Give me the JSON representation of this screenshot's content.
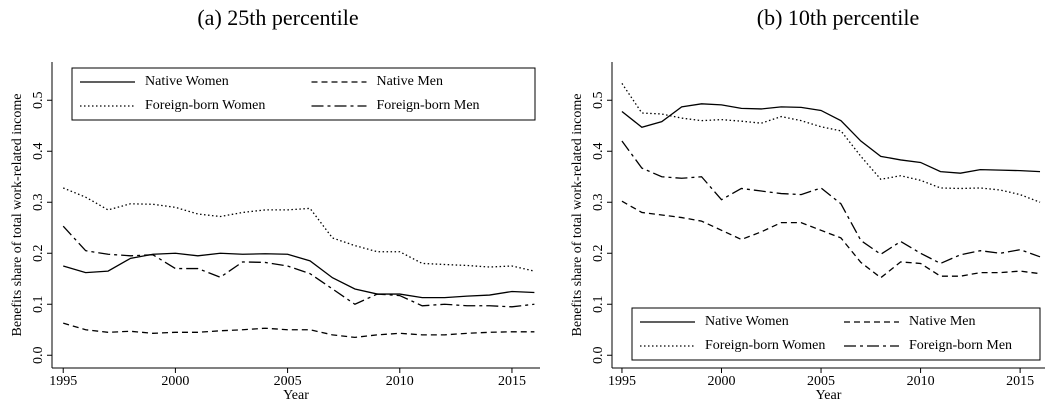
{
  "chart_data": [
    {
      "type": "line",
      "title": "(a) 25th percentile",
      "xlabel": "Year",
      "ylabel": "Benefits share of total work-related income",
      "x": [
        1995,
        1996,
        1997,
        1998,
        1999,
        2000,
        2001,
        2002,
        2003,
        2004,
        2005,
        2006,
        2007,
        2008,
        2009,
        2010,
        2011,
        2012,
        2013,
        2014,
        2015,
        2016
      ],
      "xlim": [
        1994.5,
        2016.25
      ],
      "xticks": [
        1995,
        2000,
        2005,
        2010,
        2015
      ],
      "ylim": [
        -0.025,
        0.575
      ],
      "yticks": [
        {
          "value": 0,
          "label": "0.0"
        },
        0.1,
        0.2,
        0.3,
        0.4,
        0.5
      ],
      "legend": "top",
      "series": [
        {
          "name": "Native Women",
          "color": "#000000",
          "style": "solid",
          "values": [
            0.175,
            0.162,
            0.165,
            0.19,
            0.198,
            0.2,
            0.195,
            0.2,
            0.198,
            0.199,
            0.198,
            0.185,
            0.152,
            0.13,
            0.12,
            0.12,
            0.113,
            0.113,
            0.116,
            0.118,
            0.125,
            0.123
          ]
        },
        {
          "name": "Native Men",
          "color": "#000000",
          "style": "dashed",
          "values": [
            0.063,
            0.05,
            0.045,
            0.047,
            0.043,
            0.045,
            0.045,
            0.048,
            0.05,
            0.053,
            0.05,
            0.05,
            0.04,
            0.035,
            0.04,
            0.043,
            0.04,
            0.04,
            0.043,
            0.045,
            0.046,
            0.046
          ]
        },
        {
          "name": "Foreign-born Women",
          "color": "#000000",
          "style": "dotted",
          "values": [
            0.328,
            0.31,
            0.285,
            0.297,
            0.296,
            0.29,
            0.277,
            0.272,
            0.28,
            0.285,
            0.285,
            0.288,
            0.23,
            0.215,
            0.203,
            0.203,
            0.18,
            0.178,
            0.176,
            0.173,
            0.175,
            0.165
          ]
        },
        {
          "name": "Foreign-born Men",
          "color": "#000000",
          "style": "dashdot",
          "values": [
            0.253,
            0.205,
            0.198,
            0.195,
            0.197,
            0.17,
            0.17,
            0.153,
            0.183,
            0.182,
            0.175,
            0.16,
            0.13,
            0.1,
            0.12,
            0.117,
            0.097,
            0.1,
            0.097,
            0.097,
            0.095,
            0.1
          ]
        }
      ]
    },
    {
      "type": "line",
      "title": "(b) 10th percentile",
      "xlabel": "Year",
      "ylabel": "Benefits share of total work-related income",
      "x": [
        1995,
        1996,
        1997,
        1998,
        1999,
        2000,
        2001,
        2002,
        2003,
        2004,
        2005,
        2006,
        2007,
        2008,
        2009,
        2010,
        2011,
        2012,
        2013,
        2014,
        2015,
        2016
      ],
      "xlim": [
        1994.5,
        2016.25
      ],
      "xticks": [
        1995,
        2000,
        2005,
        2010,
        2015
      ],
      "ylim": [
        -0.025,
        0.575
      ],
      "yticks": [
        {
          "value": 0,
          "label": "0.0"
        },
        0.1,
        0.2,
        0.3,
        0.4,
        0.5
      ],
      "legend": "bottom",
      "series": [
        {
          "name": "Native Women",
          "color": "#000000",
          "style": "solid",
          "values": [
            0.478,
            0.447,
            0.458,
            0.487,
            0.493,
            0.491,
            0.484,
            0.483,
            0.487,
            0.486,
            0.48,
            0.46,
            0.42,
            0.39,
            0.383,
            0.378,
            0.36,
            0.357,
            0.364,
            0.363,
            0.362,
            0.36
          ]
        },
        {
          "name": "Native Men",
          "color": "#000000",
          "style": "dashed",
          "values": [
            0.302,
            0.28,
            0.275,
            0.27,
            0.263,
            0.245,
            0.227,
            0.242,
            0.26,
            0.26,
            0.245,
            0.23,
            0.182,
            0.152,
            0.183,
            0.18,
            0.155,
            0.155,
            0.162,
            0.162,
            0.165,
            0.16
          ]
        },
        {
          "name": "Foreign-born Women",
          "color": "#000000",
          "style": "dotted",
          "values": [
            0.533,
            0.475,
            0.473,
            0.465,
            0.46,
            0.462,
            0.459,
            0.455,
            0.468,
            0.46,
            0.448,
            0.44,
            0.39,
            0.345,
            0.352,
            0.343,
            0.328,
            0.327,
            0.328,
            0.324,
            0.315,
            0.3
          ]
        },
        {
          "name": "Foreign-born Men",
          "color": "#000000",
          "style": "dashdot",
          "values": [
            0.42,
            0.367,
            0.35,
            0.347,
            0.35,
            0.305,
            0.327,
            0.322,
            0.317,
            0.315,
            0.328,
            0.297,
            0.225,
            0.198,
            0.223,
            0.2,
            0.18,
            0.197,
            0.205,
            0.2,
            0.207,
            0.193
          ]
        }
      ]
    }
  ]
}
